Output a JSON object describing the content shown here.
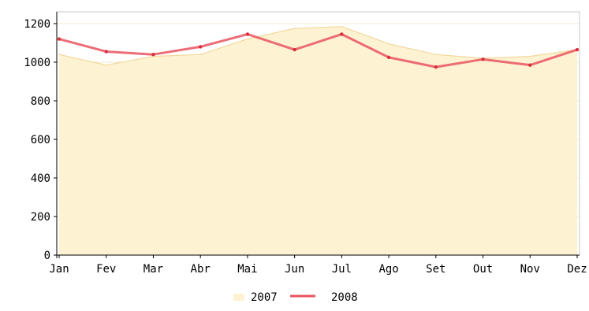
{
  "chart_data": {
    "type": "line",
    "categories": [
      "Jan",
      "Fev",
      "Mar",
      "Abr",
      "Mai",
      "Jun",
      "Jul",
      "Ago",
      "Set",
      "Out",
      "Nov",
      "Dez"
    ],
    "ylim": [
      0,
      1200
    ],
    "yticks": [
      0,
      200,
      400,
      600,
      800,
      1000,
      1200
    ],
    "ytick_labels": [
      "0",
      "200",
      "400",
      "600",
      "800",
      "1000",
      "1200"
    ],
    "grid": true,
    "legend_position": "bottom-center",
    "series": [
      {
        "name": "2007",
        "style": "area",
        "color": "#f2d79a",
        "fill": "#fdf3d3",
        "values": [
          1040,
          985,
          1030,
          1040,
          1120,
          1175,
          1185,
          1095,
          1040,
          1020,
          1030,
          1065
        ]
      },
      {
        "name": "2008",
        "style": "line",
        "color": "#e9545f",
        "values": [
          1120,
          1055,
          1040,
          1080,
          1145,
          1065,
          1145,
          1025,
          975,
          1015,
          985,
          1065
        ]
      }
    ]
  }
}
